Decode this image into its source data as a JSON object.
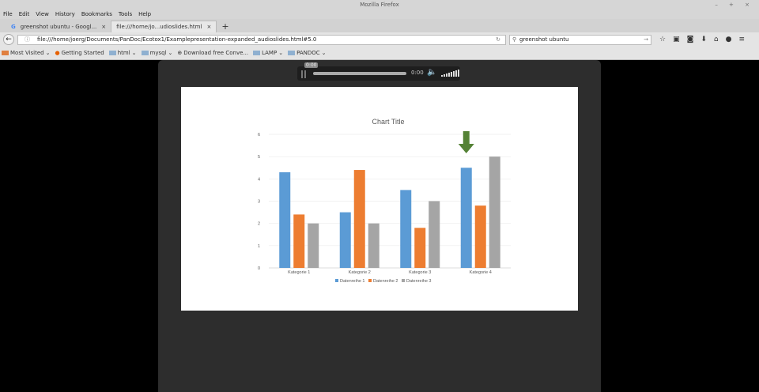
{
  "window": {
    "title": "Mozilla Firefox",
    "controls": "– + ×"
  },
  "menu": [
    "File",
    "Edit",
    "View",
    "History",
    "Bookmarks",
    "Tools",
    "Help"
  ],
  "tabs": [
    {
      "label": "greenshot ubuntu - Googl...",
      "active": false
    },
    {
      "label": "file:///home/jo...udioslides.html",
      "active": true
    }
  ],
  "new_tab": "+",
  "nav": {
    "url": "file:///home/joerg/Documents/PanDoc/Ecotox1/Examplepresentation-expanded_audioslides.html#5.0",
    "search": "greenshot ubuntu"
  },
  "toolbar_icons": [
    "star-icon",
    "clipboard-icon",
    "pocket-icon",
    "download-icon",
    "home-icon",
    "chat-icon",
    "menu-icon"
  ],
  "bookmarks": [
    {
      "label": "Most Visited",
      "icon": "folder"
    },
    {
      "label": "Getting Started",
      "icon": "firefox"
    },
    {
      "label": "html",
      "icon": "folder"
    },
    {
      "label": "mysql",
      "icon": "folder"
    },
    {
      "label": "Download free Conve...",
      "icon": "globe"
    },
    {
      "label": "LAMP",
      "icon": "folder"
    },
    {
      "label": "PANDOC",
      "icon": "folder"
    }
  ],
  "audio": {
    "tooltip": "0:00",
    "time": "0:00",
    "progress": 0,
    "volume": 1
  },
  "chart_data": {
    "type": "bar",
    "title": "Chart Title",
    "categories": [
      "Kategorie 1",
      "Kategorie 2",
      "Kategorie 3",
      "Kategorie 4"
    ],
    "series": [
      {
        "name": "Datenreihe 1",
        "values": [
          4.3,
          2.5,
          3.5,
          4.5
        ],
        "color": "#5b9bd5"
      },
      {
        "name": "Datenreihe 2",
        "values": [
          2.4,
          4.4,
          1.8,
          2.8
        ],
        "color": "#ed7d31"
      },
      {
        "name": "Datenreihe 3",
        "values": [
          2,
          2,
          3,
          5
        ],
        "color": "#a5a5a5"
      }
    ],
    "ylim": [
      0,
      6
    ],
    "yticks": [
      "0",
      "1",
      "2",
      "3",
      "4",
      "5",
      "6"
    ],
    "grid": true,
    "legend": "bottom",
    "annotation": {
      "type": "arrow",
      "color": "#548235",
      "category": "Kategorie 4"
    }
  }
}
